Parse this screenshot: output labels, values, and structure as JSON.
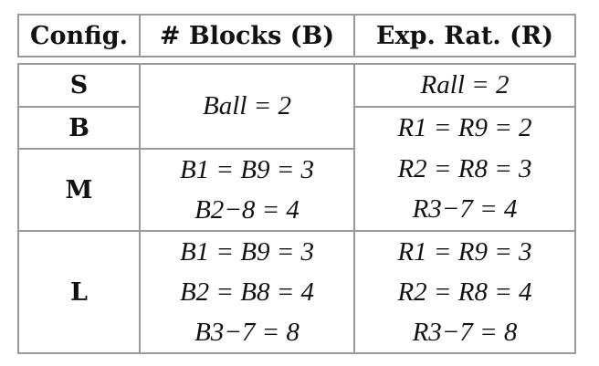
{
  "table": {
    "headers": {
      "config": "Config.",
      "blocks": "# Blocks (B)",
      "ratio": "Exp. Rat. (R)"
    },
    "rows": {
      "s": {
        "label": "S",
        "ratio": "Rall = 2"
      },
      "b": {
        "label": "B",
        "ratio": "R1 = R9 = 2"
      },
      "sb_blocks": "Ball = 2",
      "m": {
        "label": "M",
        "blocks": [
          "B1 = B9 = 3",
          "B2−8 = 4"
        ],
        "ratio": [
          "R2 = R8 = 3",
          "R3−7 = 4"
        ]
      },
      "l": {
        "label": "L",
        "blocks": [
          "B1 = B9 = 3",
          "B2 = B8 = 4",
          "B3−7 = 8"
        ],
        "ratio": [
          "R1 = R9 = 3",
          "R2 = R8 = 4",
          "R3−7 = 8"
        ]
      }
    }
  }
}
